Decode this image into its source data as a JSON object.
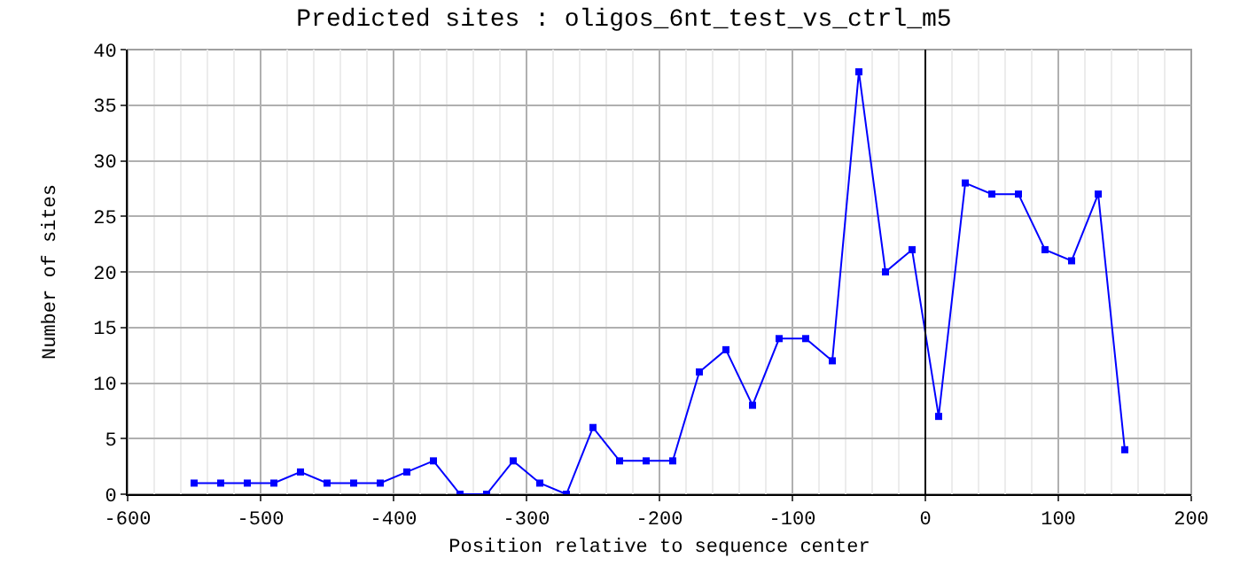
{
  "chart_data": {
    "type": "line",
    "title": "Predicted sites : oligos_6nt_test_vs_ctrl_m5",
    "xlabel": "Position relative to sequence center",
    "ylabel": "Number of sites",
    "x": [
      -550,
      -530,
      -510,
      -490,
      -470,
      -450,
      -430,
      -410,
      -390,
      -370,
      -350,
      -330,
      -310,
      -290,
      -270,
      -250,
      -230,
      -210,
      -190,
      -170,
      -150,
      -130,
      -110,
      -90,
      -70,
      -50,
      -30,
      -10,
      10,
      30,
      50,
      70,
      90,
      110,
      130,
      150
    ],
    "series": [
      {
        "color": "#0000ff",
        "values": [
          1,
          1,
          1,
          1,
          2,
          1,
          1,
          1,
          2,
          3,
          0,
          0,
          3,
          1,
          0,
          6,
          3,
          3,
          3,
          11,
          13,
          8,
          14,
          14,
          12,
          38,
          20,
          22,
          7,
          28,
          27,
          27,
          22,
          21,
          27,
          4
        ]
      }
    ],
    "xlim": [
      -600,
      200
    ],
    "xticks": [
      -600,
      -500,
      -400,
      -300,
      -200,
      -100,
      0,
      100,
      200
    ],
    "ylim": [
      0,
      40
    ],
    "yticks": [
      0,
      5,
      10,
      15,
      20,
      25,
      30,
      35,
      40
    ],
    "ref_lines": [
      {
        "axis": "x",
        "value": 0,
        "color": "#000000"
      }
    ],
    "grid": true,
    "marker": "square",
    "line_style": "solid"
  }
}
